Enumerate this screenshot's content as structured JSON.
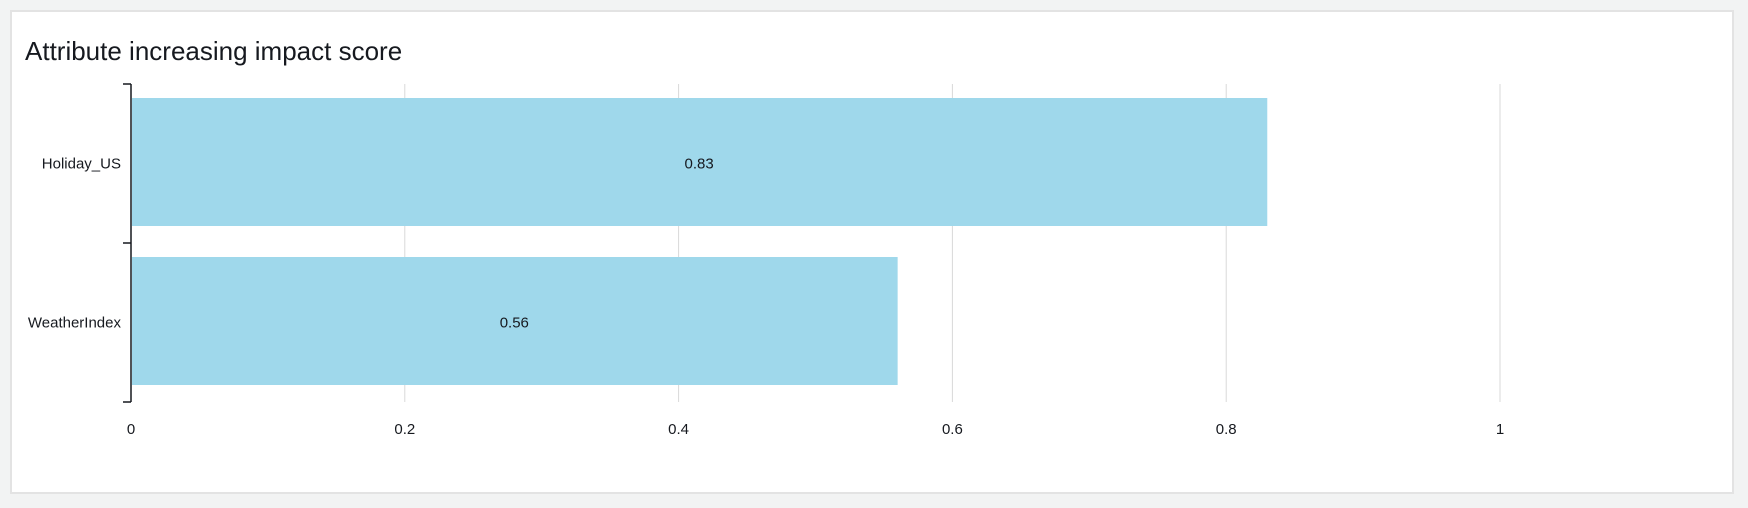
{
  "panel": {
    "title": "Attribute increasing impact score"
  },
  "chart_data": {
    "type": "bar",
    "orientation": "horizontal",
    "title": "Attribute increasing impact score",
    "categories": [
      "Holiday_US",
      "WeatherIndex"
    ],
    "values": [
      0.83,
      0.56
    ],
    "value_labels": [
      "0.83",
      "0.56"
    ],
    "xlabel": "",
    "ylabel": "",
    "xlim": [
      0,
      1
    ],
    "xticks": [
      0,
      0.2,
      0.4,
      0.6,
      0.8,
      1
    ],
    "xtick_labels": [
      "0",
      "0.2",
      "0.4",
      "0.6",
      "0.8",
      "1"
    ],
    "grid": true,
    "colors": {
      "bar": "#9fd8eb",
      "grid": "#d9d9d9",
      "axis": "#16191f"
    }
  }
}
